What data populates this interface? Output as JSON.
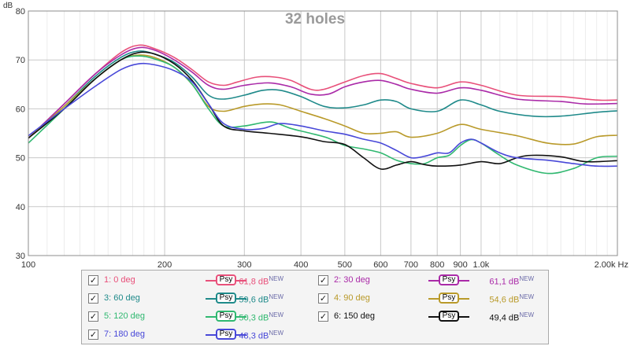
{
  "chart_data": {
    "type": "line",
    "title": "32 holes",
    "ylabel": "dB",
    "xscale": "log",
    "xlim": [
      100,
      2000
    ],
    "ylim": [
      30,
      80
    ],
    "x_ticks": [
      100,
      200,
      300,
      400,
      500,
      600,
      700,
      800,
      900,
      1000,
      2000
    ],
    "x_tick_labels": [
      "100",
      "200",
      "300",
      "400",
      "500",
      "600",
      "700",
      "800",
      "900",
      "1,0k",
      "2,00k Hz"
    ],
    "y_ticks": [
      30,
      40,
      50,
      60,
      70,
      80
    ],
    "grid": true,
    "legend_position": "bottom",
    "series": [
      {
        "name": "1: 0 deg",
        "color": "#e8507a",
        "level": "61,8 dB",
        "points": [
          [
            100,
            54
          ],
          [
            120,
            61
          ],
          [
            140,
            67
          ],
          [
            160,
            71.5
          ],
          [
            175,
            73
          ],
          [
            190,
            72.3
          ],
          [
            210,
            70.5
          ],
          [
            230,
            68
          ],
          [
            250,
            65.5
          ],
          [
            270,
            64.8
          ],
          [
            290,
            65.5
          ],
          [
            320,
            66.5
          ],
          [
            350,
            66.5
          ],
          [
            380,
            65.8
          ],
          [
            420,
            64
          ],
          [
            450,
            64
          ],
          [
            500,
            65.5
          ],
          [
            550,
            66.8
          ],
          [
            600,
            67.2
          ],
          [
            650,
            66.2
          ],
          [
            700,
            65.2
          ],
          [
            800,
            64.3
          ],
          [
            900,
            65.5
          ],
          [
            1000,
            64.8
          ],
          [
            1200,
            62.8
          ],
          [
            1500,
            62.5
          ],
          [
            1800,
            61.8
          ],
          [
            2000,
            61.8
          ]
        ]
      },
      {
        "name": "2: 30 deg",
        "color": "#aa2aa8",
        "level": "61,1 dB",
        "points": [
          [
            100,
            54
          ],
          [
            120,
            61
          ],
          [
            140,
            67
          ],
          [
            160,
            71
          ],
          [
            175,
            72.5
          ],
          [
            190,
            72
          ],
          [
            210,
            70
          ],
          [
            230,
            67.5
          ],
          [
            250,
            64.8
          ],
          [
            270,
            64
          ],
          [
            300,
            64.8
          ],
          [
            340,
            65.3
          ],
          [
            380,
            64.5
          ],
          [
            420,
            63
          ],
          [
            460,
            63
          ],
          [
            500,
            64.5
          ],
          [
            550,
            65.5
          ],
          [
            600,
            65.8
          ],
          [
            650,
            65
          ],
          [
            700,
            64
          ],
          [
            800,
            63.2
          ],
          [
            900,
            64.3
          ],
          [
            1000,
            63.8
          ],
          [
            1200,
            62
          ],
          [
            1500,
            61.5
          ],
          [
            1700,
            61
          ],
          [
            2000,
            61.1
          ]
        ]
      },
      {
        "name": "3: 60 deg",
        "color": "#1f8a8a",
        "level": "59,6 dB",
        "points": [
          [
            100,
            54
          ],
          [
            120,
            60.5
          ],
          [
            140,
            66.5
          ],
          [
            160,
            70.5
          ],
          [
            175,
            71.8
          ],
          [
            190,
            71.2
          ],
          [
            210,
            69.5
          ],
          [
            230,
            66.5
          ],
          [
            250,
            62.8
          ],
          [
            270,
            62
          ],
          [
            300,
            62.8
          ],
          [
            330,
            63.8
          ],
          [
            360,
            63.8
          ],
          [
            400,
            62.5
          ],
          [
            450,
            60.5
          ],
          [
            500,
            60.2
          ],
          [
            550,
            60.8
          ],
          [
            600,
            61.8
          ],
          [
            650,
            61.5
          ],
          [
            700,
            60
          ],
          [
            800,
            59.5
          ],
          [
            900,
            61.8
          ],
          [
            1000,
            60.8
          ],
          [
            1100,
            59.5
          ],
          [
            1300,
            58.5
          ],
          [
            1500,
            58.5
          ],
          [
            1800,
            59.3
          ],
          [
            2000,
            59.6
          ]
        ]
      },
      {
        "name": "4: 90 deg",
        "color": "#b99a2a",
        "level": "54,6 dB",
        "points": [
          [
            100,
            54
          ],
          [
            120,
            60.5
          ],
          [
            140,
            66
          ],
          [
            160,
            70
          ],
          [
            175,
            71
          ],
          [
            190,
            70.5
          ],
          [
            210,
            68.5
          ],
          [
            230,
            65
          ],
          [
            250,
            60.5
          ],
          [
            270,
            59.5
          ],
          [
            300,
            60.5
          ],
          [
            330,
            61
          ],
          [
            360,
            60.8
          ],
          [
            400,
            59.5
          ],
          [
            450,
            58
          ],
          [
            500,
            56.5
          ],
          [
            550,
            55
          ],
          [
            600,
            55
          ],
          [
            650,
            55.3
          ],
          [
            700,
            54.2
          ],
          [
            800,
            55
          ],
          [
            900,
            56.8
          ],
          [
            1000,
            55.8
          ],
          [
            1200,
            54.5
          ],
          [
            1400,
            53
          ],
          [
            1600,
            52.8
          ],
          [
            1800,
            54.3
          ],
          [
            2000,
            54.6
          ]
        ]
      },
      {
        "name": "5: 120 deg",
        "color": "#30b870",
        "level": "50,3 dB",
        "points": [
          [
            100,
            53
          ],
          [
            120,
            60
          ],
          [
            140,
            66
          ],
          [
            160,
            70
          ],
          [
            175,
            70.8
          ],
          [
            190,
            70.2
          ],
          [
            210,
            68.5
          ],
          [
            230,
            65
          ],
          [
            250,
            60
          ],
          [
            270,
            56.5
          ],
          [
            300,
            56.5
          ],
          [
            330,
            57.2
          ],
          [
            350,
            57.2
          ],
          [
            380,
            56
          ],
          [
            420,
            55
          ],
          [
            460,
            54
          ],
          [
            500,
            52.5
          ],
          [
            550,
            51.8
          ],
          [
            600,
            51
          ],
          [
            650,
            49.5
          ],
          [
            700,
            48.8
          ],
          [
            750,
            48.8
          ],
          [
            800,
            50
          ],
          [
            850,
            50.5
          ],
          [
            900,
            52.5
          ],
          [
            950,
            53.7
          ],
          [
            1000,
            53
          ],
          [
            1100,
            50.5
          ],
          [
            1200,
            48.5
          ],
          [
            1400,
            46.8
          ],
          [
            1600,
            47.8
          ],
          [
            1800,
            50
          ],
          [
            2000,
            50.3
          ]
        ]
      },
      {
        "name": "6: 150 deg",
        "color": "#111111",
        "level": "49,4 dB",
        "points": [
          [
            100,
            54
          ],
          [
            120,
            60
          ],
          [
            140,
            66
          ],
          [
            160,
            70
          ],
          [
            175,
            71.5
          ],
          [
            190,
            71.2
          ],
          [
            210,
            69.2
          ],
          [
            230,
            65.8
          ],
          [
            250,
            61
          ],
          [
            270,
            56.5
          ],
          [
            300,
            55.5
          ],
          [
            340,
            55
          ],
          [
            400,
            54.3
          ],
          [
            450,
            53.3
          ],
          [
            500,
            52.7
          ],
          [
            550,
            50
          ],
          [
            600,
            47.7
          ],
          [
            650,
            48.5
          ],
          [
            700,
            49.2
          ],
          [
            750,
            48.6
          ],
          [
            800,
            48.3
          ],
          [
            900,
            48.5
          ],
          [
            1000,
            49.2
          ],
          [
            1100,
            48.8
          ],
          [
            1200,
            50
          ],
          [
            1300,
            50.5
          ],
          [
            1500,
            50.2
          ],
          [
            1700,
            49.2
          ],
          [
            2000,
            49.4
          ]
        ]
      },
      {
        "name": "7: 180 deg",
        "color": "#4848d8",
        "level": "48,3 dB",
        "points": [
          [
            100,
            54.5
          ],
          [
            120,
            60
          ],
          [
            140,
            64.5
          ],
          [
            160,
            68
          ],
          [
            175,
            69.2
          ],
          [
            190,
            69
          ],
          [
            210,
            67.8
          ],
          [
            230,
            65.5
          ],
          [
            250,
            61
          ],
          [
            270,
            57
          ],
          [
            300,
            55.8
          ],
          [
            330,
            56
          ],
          [
            360,
            57
          ],
          [
            400,
            56.5
          ],
          [
            450,
            55.5
          ],
          [
            500,
            54.8
          ],
          [
            550,
            53.8
          ],
          [
            600,
            53
          ],
          [
            650,
            51.5
          ],
          [
            700,
            50
          ],
          [
            750,
            50.3
          ],
          [
            800,
            51
          ],
          [
            850,
            51
          ],
          [
            900,
            53
          ],
          [
            950,
            53.8
          ],
          [
            1000,
            53
          ],
          [
            1100,
            51
          ],
          [
            1200,
            50
          ],
          [
            1400,
            49.5
          ],
          [
            1600,
            48.8
          ],
          [
            1800,
            48.3
          ],
          [
            2000,
            48.3
          ]
        ]
      }
    ]
  },
  "legend": {
    "psy_label": "Psy",
    "new_label": "NEW",
    "check_mark": "✓"
  }
}
